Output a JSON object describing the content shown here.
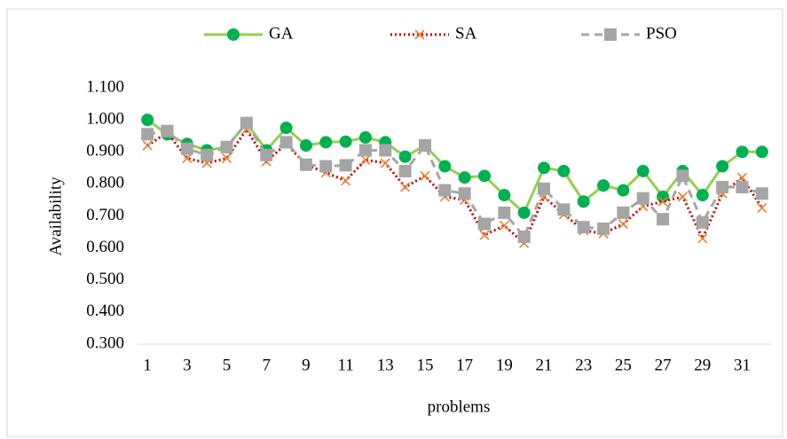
{
  "chart_data": {
    "type": "line",
    "y_label": "Availability",
    "x_label": "problems",
    "categories": [
      1,
      null,
      3,
      null,
      5,
      null,
      7,
      null,
      9,
      null,
      11,
      null,
      13,
      null,
      15,
      null,
      17,
      null,
      19,
      null,
      21,
      null,
      23,
      null,
      25,
      null,
      27,
      null,
      29,
      null,
      31,
      null
    ],
    "series": [
      {
        "name": "GA",
        "color": "#92d050",
        "marker_color": "#00b050",
        "marker": "circle",
        "line_style": "solid",
        "values": [
          1.0,
          0.955,
          0.925,
          0.905,
          0.915,
          0.99,
          0.905,
          0.975,
          0.92,
          0.93,
          0.932,
          0.945,
          0.93,
          0.885,
          0.92,
          0.855,
          0.82,
          0.825,
          0.765,
          0.71,
          0.85,
          0.84,
          0.745,
          0.795,
          0.78,
          0.84,
          0.76,
          0.84,
          0.765,
          0.855,
          0.9,
          0.9
        ]
      },
      {
        "name": "SA",
        "color": "#c00000",
        "marker_color": "#ed7d31",
        "marker": "x",
        "line_style": "dotted",
        "values": [
          0.92,
          0.96,
          0.88,
          0.865,
          0.88,
          0.97,
          0.87,
          0.925,
          0.86,
          0.835,
          0.81,
          0.875,
          0.865,
          0.79,
          0.825,
          0.76,
          0.75,
          0.64,
          0.67,
          0.615,
          0.76,
          0.705,
          0.655,
          0.645,
          0.675,
          0.73,
          0.745,
          0.76,
          0.63,
          0.77,
          0.82,
          0.725
        ]
      },
      {
        "name": "PSO",
        "color": "#a5a5a5",
        "marker_color": "#a5a5a5",
        "marker": "square",
        "line_style": "dashed",
        "values": [
          0.955,
          0.965,
          0.91,
          0.89,
          0.915,
          0.99,
          0.89,
          0.93,
          0.86,
          0.855,
          0.858,
          0.905,
          0.905,
          0.84,
          0.92,
          0.78,
          0.77,
          0.675,
          0.71,
          0.635,
          0.785,
          0.72,
          0.665,
          0.66,
          0.71,
          0.755,
          0.69,
          0.825,
          0.68,
          0.79,
          0.79,
          0.77
        ]
      }
    ],
    "ylim": [
      0.3,
      1.1
    ],
    "yticks": [
      {
        "value": 0.3,
        "label": "0.300"
      },
      {
        "value": 0.4,
        "label": "0.400"
      },
      {
        "value": 0.5,
        "label": "0.500"
      },
      {
        "value": 0.6,
        "label": "0.600"
      },
      {
        "value": 0.7,
        "label": "0.700"
      },
      {
        "value": 0.8,
        "label": "0.800"
      },
      {
        "value": 0.9,
        "label": "0.900"
      },
      {
        "value": 1.0,
        "label": "1.000"
      },
      {
        "value": 1.1,
        "label": "1.100"
      }
    ],
    "grid": false,
    "legend": "top"
  }
}
